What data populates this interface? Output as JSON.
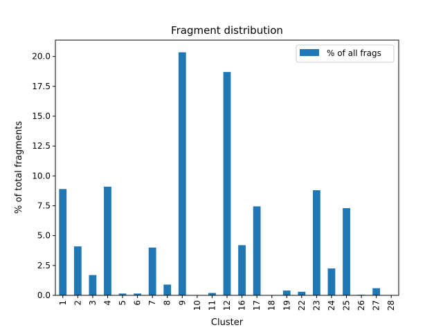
{
  "chart_data": {
    "type": "bar",
    "title": "Fragment distribution",
    "xlabel": "Cluster",
    "ylabel": "% of total fragments",
    "categories": [
      "1",
      "2",
      "3",
      "4",
      "5",
      "6",
      "7",
      "8",
      "9",
      "10",
      "11",
      "12",
      "16",
      "17",
      "18",
      "19",
      "22",
      "23",
      "24",
      "25",
      "26",
      "27",
      "28"
    ],
    "series": [
      {
        "name": "% of all frags",
        "color": "#1f77b4",
        "values": [
          8.9,
          4.1,
          1.7,
          9.1,
          0.15,
          0.15,
          4.0,
          0.9,
          20.35,
          0.0,
          0.2,
          18.7,
          4.2,
          7.45,
          0.0,
          0.4,
          0.3,
          8.8,
          2.25,
          7.3,
          0.05,
          0.6,
          0.0
        ]
      }
    ],
    "ylim": [
      0,
      21.37
    ],
    "yticks": [
      "0.0",
      "2.5",
      "5.0",
      "7.5",
      "10.0",
      "12.5",
      "15.0",
      "17.5",
      "20.0"
    ],
    "grid": false,
    "legend_position": "top-right"
  }
}
